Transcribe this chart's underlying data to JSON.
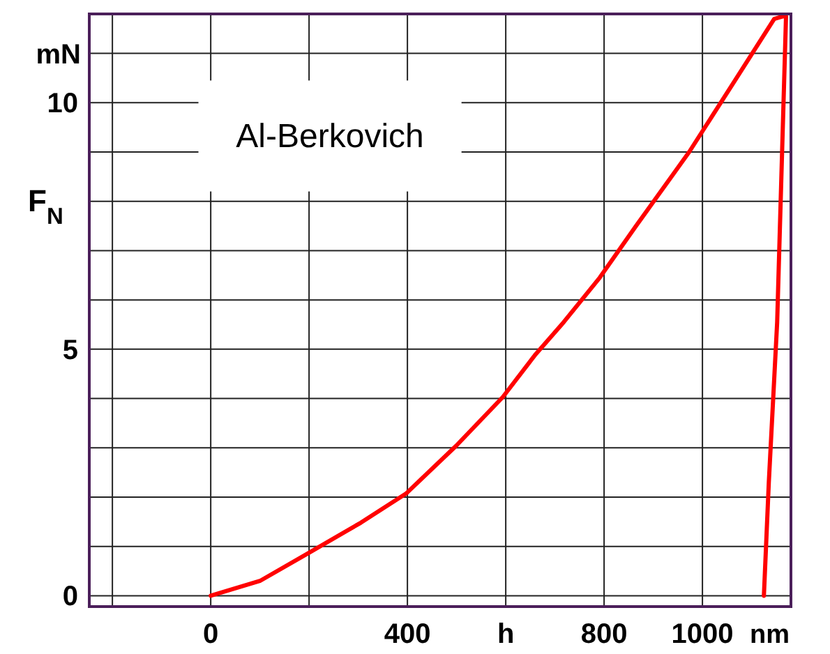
{
  "chart_data": {
    "type": "line",
    "title": "Al-Berkovich",
    "ylabel": "F$_{N}$",
    "xlabel": "h",
    "annotations": [
      "mN",
      "nm"
    ],
    "xlim": [
      -247,
      1180
    ],
    "ylim": [
      -0.22,
      11.8
    ],
    "xticks": [
      {
        "value": -200,
        "label": null
      },
      0,
      {
        "value": 200,
        "label": null
      },
      400,
      {
        "value": 600,
        "label": null
      },
      800,
      1000
    ],
    "yticks": [
      0,
      {
        "value": 1,
        "label": null
      },
      {
        "value": 2,
        "label": null
      },
      {
        "value": 3,
        "label": null
      },
      {
        "value": 4,
        "label": null
      },
      5,
      {
        "value": 6,
        "label": null
      },
      {
        "value": 7,
        "label": null
      },
      {
        "value": 8,
        "label": null
      },
      {
        "value": 9,
        "label": null
      },
      10,
      {
        "value": 11,
        "label": null
      }
    ],
    "grid": true,
    "series": [
      {
        "color": "#ff0000",
        "x": [
          0,
          100,
          196,
          305,
          397,
          499,
          594,
          661,
          718,
          791,
          865,
          973,
          1061,
          1146,
          1163,
          1170,
          1152,
          1135,
          1125
        ],
        "values": [
          0,
          0.3,
          0.85,
          1.48,
          2.07,
          3.04,
          4.03,
          4.9,
          5.55,
          6.45,
          7.5,
          9.0,
          10.37,
          11.7,
          11.75,
          11.75,
          5.55,
          2.3,
          0
        ]
      }
    ]
  }
}
